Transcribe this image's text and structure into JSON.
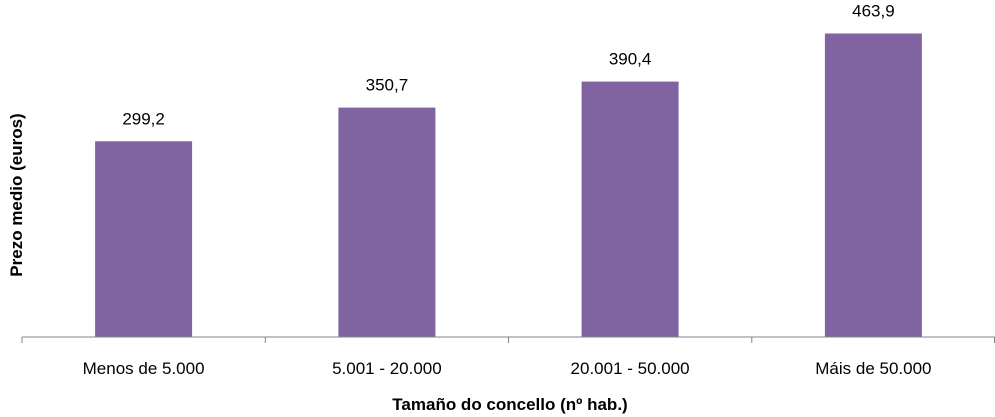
{
  "chart_data": {
    "type": "bar",
    "title": "",
    "xlabel": "Tamaño do concello (nº hab.)",
    "ylabel": "Prezo medio (euros)",
    "categories": [
      "Menos de 5.000",
      "5.001 - 20.000",
      "20.001 - 50.000",
      "Máis de 50.000"
    ],
    "values": [
      299.2,
      350.7,
      390.4,
      463.9
    ],
    "value_labels": [
      "299,2",
      "350,7",
      "390,4",
      "463,9"
    ],
    "ylim": [
      0,
      500
    ],
    "grid": false,
    "legend": "none",
    "bar_color": "#8064A2",
    "axis_color": "#868686"
  }
}
